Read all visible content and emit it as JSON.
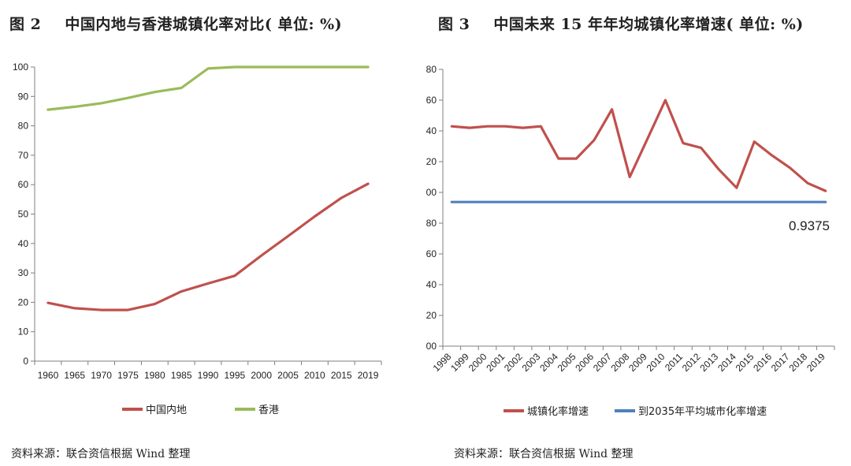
{
  "left": {
    "fig_label": "图 2",
    "title": "中国内地与香港城镇化率对比( 单位: %)",
    "source": "资料来源：联合资信根据 Wind 整理"
  },
  "right": {
    "fig_label": "图 3",
    "title": "中国未来 15 年年均城镇化率增速( 单位: %)",
    "source": "资料来源：联合资信根据 Wind 整理",
    "annotation": "0.9375"
  },
  "colors": {
    "red": "#c0504d",
    "green": "#9bbb59",
    "blue": "#4f81bd",
    "axis": "#7f7f7f"
  },
  "chart_data": [
    {
      "type": "line",
      "title": "中国内地与香港城镇化率对比( 单位: %)",
      "categories": [
        "1960",
        "1965",
        "1970",
        "1975",
        "1980",
        "1985",
        "1990",
        "1995",
        "2000",
        "2005",
        "2010",
        "2015",
        "2019"
      ],
      "ylim": [
        0,
        100
      ],
      "yticks": [
        "0",
        "10",
        "20",
        "30",
        "40",
        "50",
        "60",
        "70",
        "80",
        "90",
        "100"
      ],
      "grid": false,
      "legend_position": "bottom",
      "series": [
        {
          "name": "中国内地",
          "color": "#c0504d",
          "values": [
            19.8,
            18.0,
            17.4,
            17.4,
            19.4,
            23.7,
            26.4,
            29.0,
            35.9,
            42.5,
            49.2,
            55.5,
            60.3
          ]
        },
        {
          "name": "香港",
          "color": "#9bbb59",
          "values": [
            85.5,
            86.5,
            87.7,
            89.5,
            91.5,
            92.9,
            99.5,
            100,
            100,
            100,
            100,
            100,
            100
          ]
        }
      ]
    },
    {
      "type": "line",
      "title": "中国未来 15 年年均城镇化率增速( 单位: %)",
      "categories": [
        "1998",
        "1999",
        "2000",
        "2001",
        "2002",
        "2003",
        "2004",
        "2005",
        "2006",
        "2007",
        "2008",
        "2009",
        "2010",
        "2011",
        "2012",
        "2013",
        "2014",
        "2015",
        "2016",
        "2017",
        "2018",
        "2019"
      ],
      "ylim": [
        0,
        1.8
      ],
      "yticks": [
        "0.00",
        "0.20",
        "0.40",
        "0.60",
        "0.80",
        "1.00",
        "1.20",
        "1.40",
        "1.60",
        "1.80"
      ],
      "grid": false,
      "legend_position": "bottom",
      "series": [
        {
          "name": "城镇化率增速",
          "color": "#c0504d",
          "values": [
            1.43,
            1.42,
            1.43,
            1.43,
            1.42,
            1.43,
            1.22,
            1.22,
            1.34,
            1.54,
            1.1,
            1.35,
            1.6,
            1.32,
            1.29,
            1.15,
            1.03,
            1.33,
            1.24,
            1.16,
            1.06,
            1.01
          ]
        },
        {
          "name": "到2035年平均城市化率增速",
          "color": "#4f81bd",
          "values": [
            0.9375,
            0.9375,
            0.9375,
            0.9375,
            0.9375,
            0.9375,
            0.9375,
            0.9375,
            0.9375,
            0.9375,
            0.9375,
            0.9375,
            0.9375,
            0.9375,
            0.9375,
            0.9375,
            0.9375,
            0.9375,
            0.9375,
            0.9375,
            0.9375,
            0.9375
          ]
        }
      ],
      "annotations": [
        {
          "text": "0.9375"
        }
      ]
    }
  ]
}
